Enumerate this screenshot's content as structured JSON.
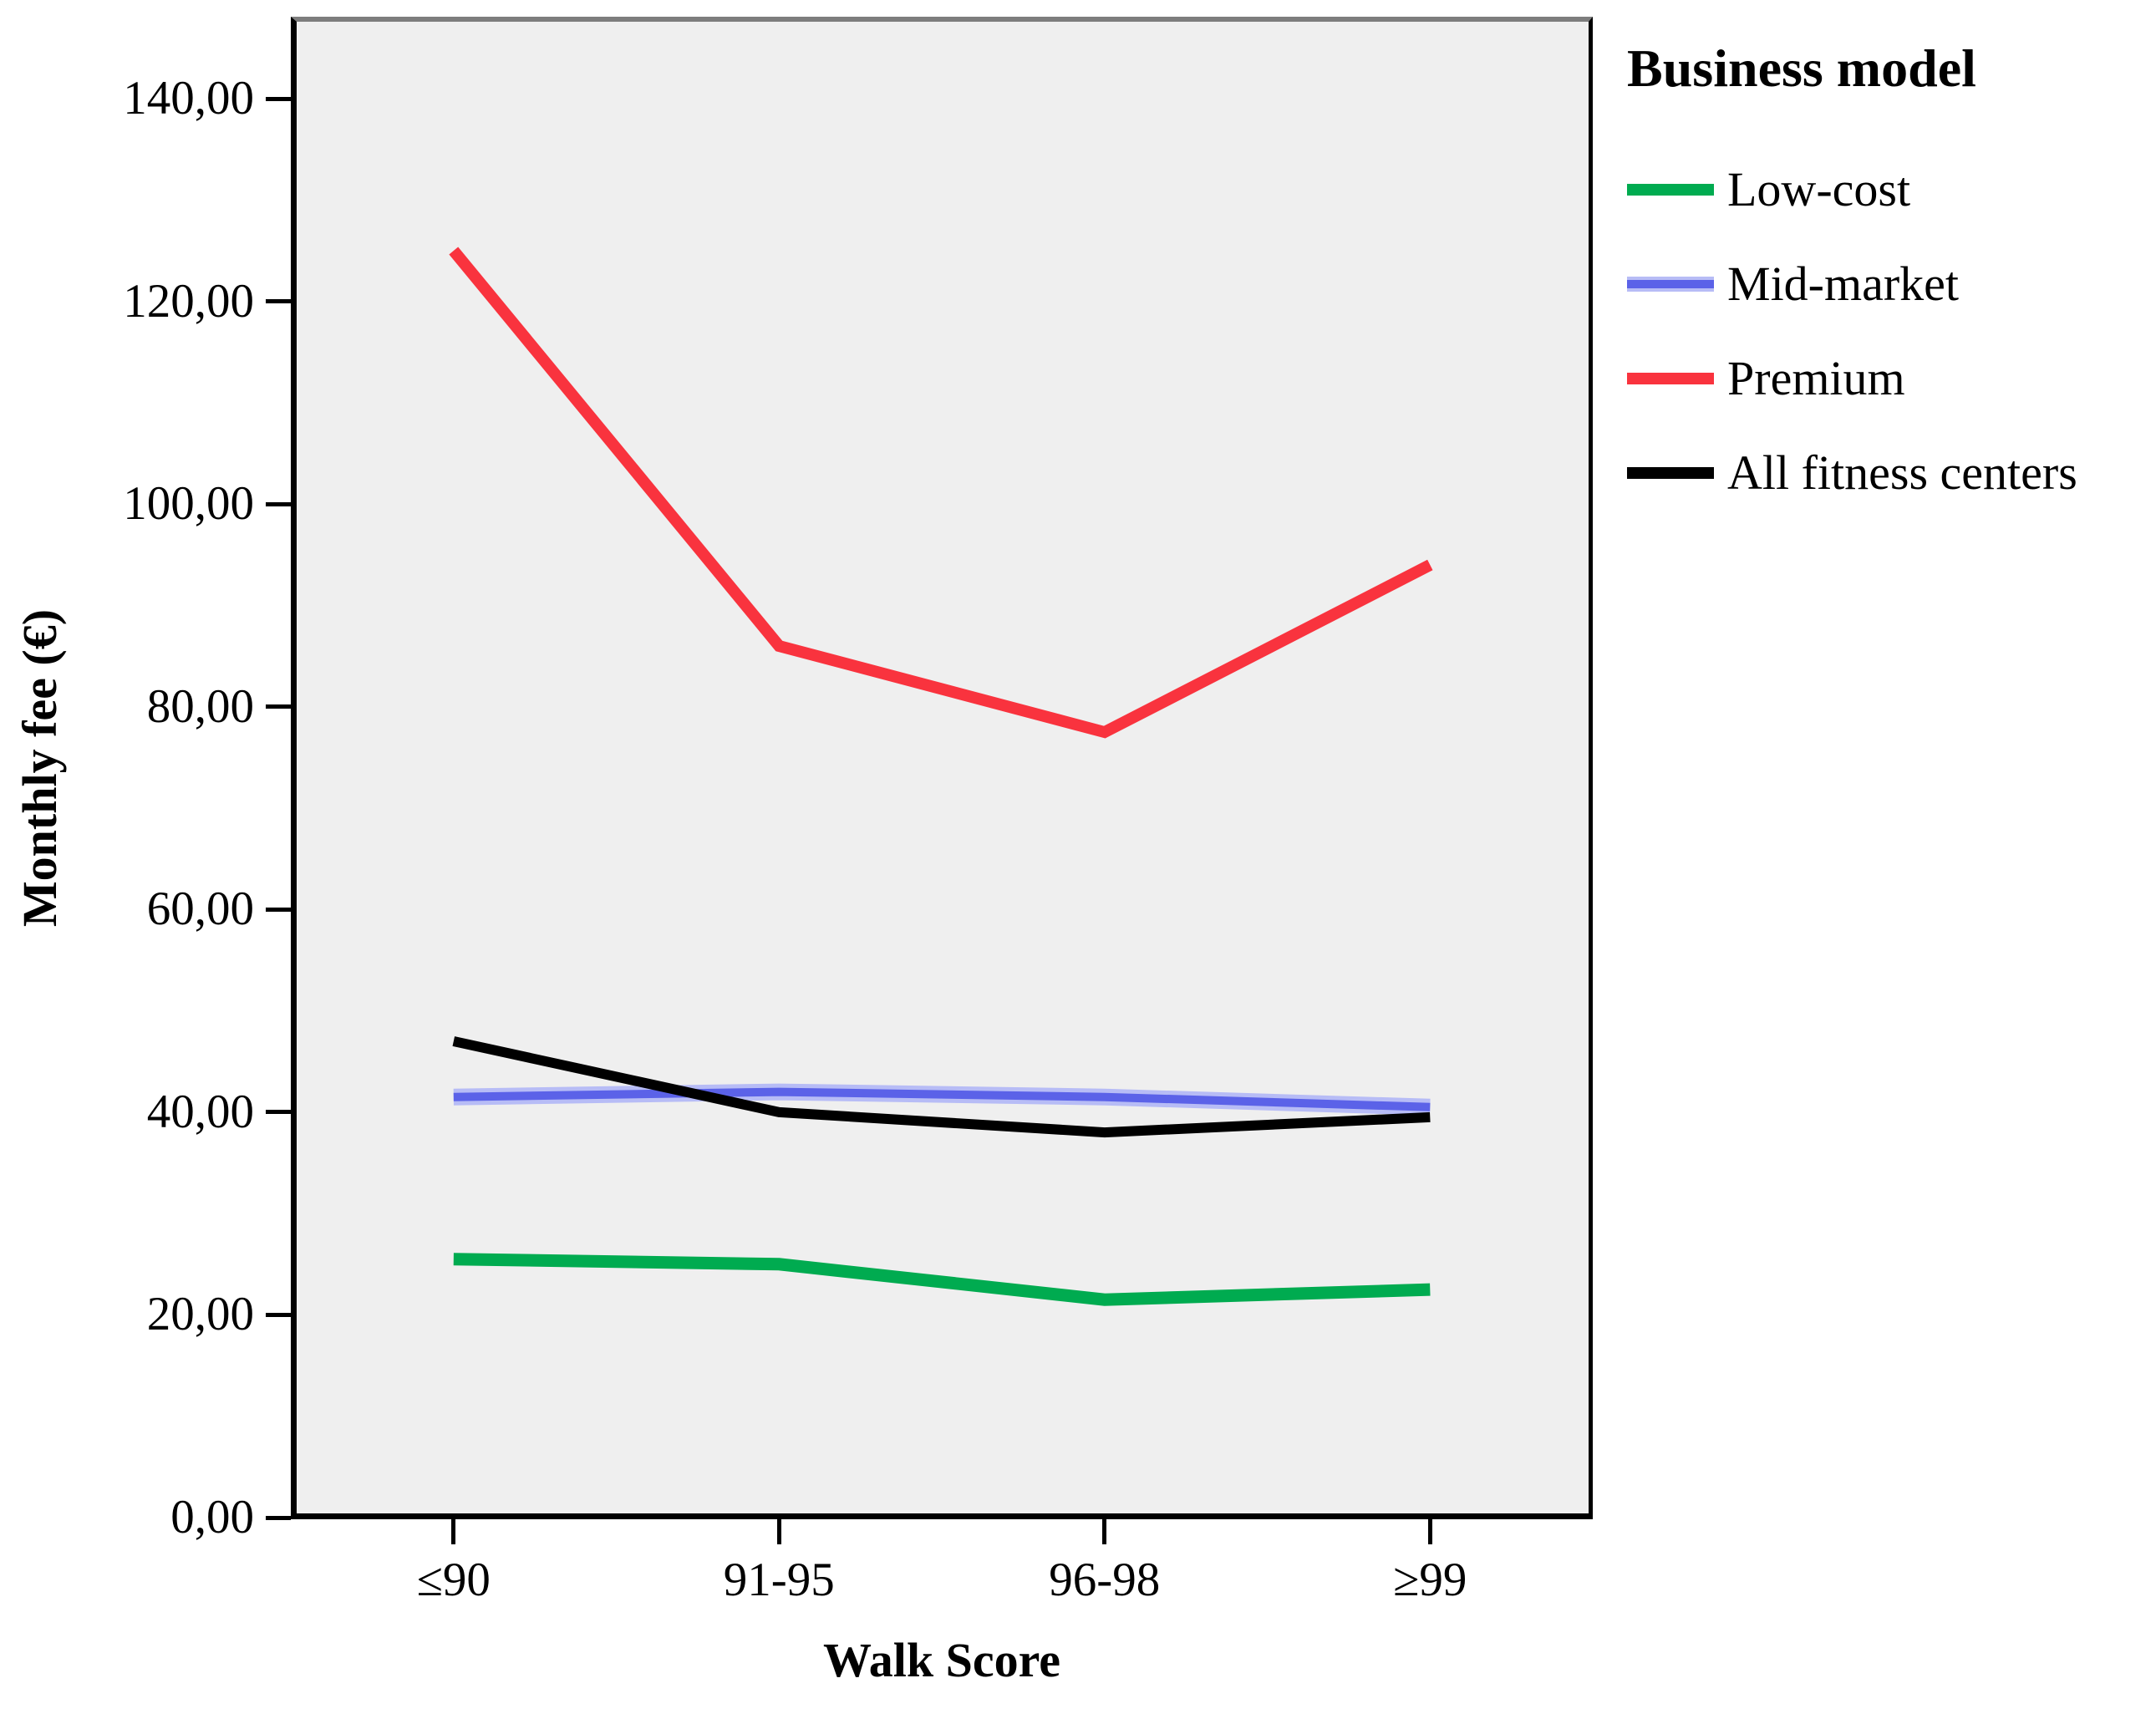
{
  "chart_data": {
    "type": "line",
    "title": "",
    "xlabel": "Walk Score",
    "ylabel": "Monthly fee (€)",
    "categories": [
      "≤90",
      "91-95",
      "96-98",
      "≥99"
    ],
    "series": [
      {
        "name": "Low-cost",
        "color": "#00ab50",
        "halo": null,
        "values": [
          25.5,
          25,
          21.5,
          22.5
        ]
      },
      {
        "name": "Mid-market",
        "color": "#5b62e8",
        "halo": "#b7bcf6",
        "values": [
          41.5,
          42,
          41.5,
          40.5
        ]
      },
      {
        "name": "Premium",
        "color": "#f9333e",
        "halo": null,
        "values": [
          125,
          86,
          77.5,
          94
        ]
      },
      {
        "name": "All fitness centers",
        "color": "#000000",
        "halo": null,
        "values": [
          47,
          40,
          38,
          39.5
        ]
      }
    ],
    "y_ticks": [
      "0,00",
      "20,00",
      "40,00",
      "60,00",
      "80,00",
      "100,00",
      "120,00",
      "140,00"
    ],
    "y_tick_values": [
      0,
      20,
      40,
      60,
      80,
      100,
      120,
      140
    ],
    "ylim": [
      0,
      148
    ],
    "legend_title": "Business model",
    "legend_position": "top-right-outside",
    "grid": false,
    "plot_background": "#efefef",
    "frame_top_color": "#7d7d7d",
    "axis_color": "#000000"
  }
}
